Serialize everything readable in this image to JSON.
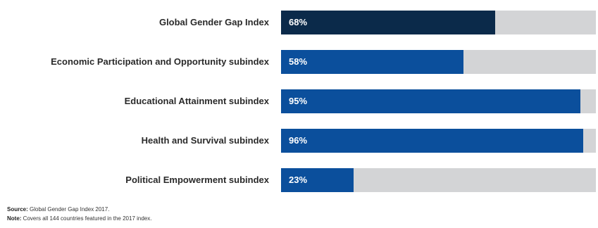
{
  "chart_data": {
    "type": "bar",
    "orientation": "horizontal",
    "categories": [
      "Global Gender Gap Index",
      "Economic Participation and Opportunity subindex",
      "Educational Attainment subindex",
      "Health and Survival subindex",
      "Political Empowerment subindex"
    ],
    "values": [
      68,
      58,
      95,
      96,
      23
    ],
    "value_labels": [
      "68%",
      "58%",
      "95%",
      "96%",
      "23%"
    ],
    "xlim": [
      0,
      100
    ],
    "bar_colors": [
      "#0b2a4a",
      "#0b4f9c",
      "#0b4f9c",
      "#0b4f9c",
      "#0b4f9c"
    ],
    "track_color": "#d3d4d6",
    "grid": false
  },
  "footer": {
    "source_label": "Source:",
    "source_text": " Global Gender Gap Index 2017.",
    "note_label": "Note:",
    "note_text": " Covers all 144 countries featured in the 2017 index."
  }
}
